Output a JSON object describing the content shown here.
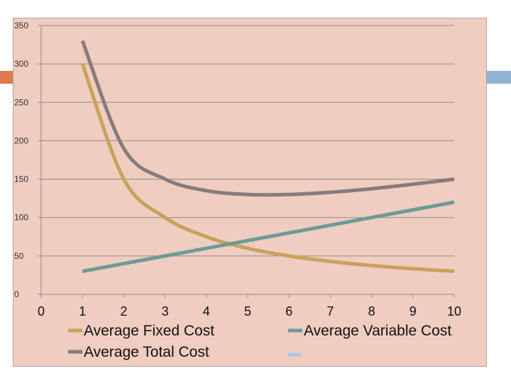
{
  "chart_data": {
    "type": "line",
    "x": [
      1,
      2,
      3,
      4,
      5,
      6,
      7,
      8,
      9,
      10
    ],
    "series": [
      {
        "name": "Average Fixed Cost",
        "color": "#c8a25c",
        "values": [
          300,
          150,
          100,
          75,
          60,
          50,
          42.86,
          37.5,
          33.33,
          30
        ]
      },
      {
        "name": "Average Variable Cost",
        "color": "#6e9a96",
        "values": [
          30,
          40,
          50,
          60,
          70,
          80,
          90,
          100,
          110,
          120
        ]
      },
      {
        "name": "Average Total Cost",
        "color": "#877b7d",
        "values": [
          330,
          190,
          150,
          135,
          130,
          130,
          132.86,
          137.5,
          143.33,
          150
        ]
      }
    ],
    "xlim": [
      0,
      10
    ],
    "xticks": [
      0,
      1,
      2,
      3,
      4,
      5,
      6,
      7,
      8,
      9,
      10
    ],
    "ylim": [
      0,
      350
    ],
    "yticks": [
      0,
      50,
      100,
      150,
      200,
      250,
      300,
      350
    ],
    "grid": true,
    "legend": "bottom"
  }
}
